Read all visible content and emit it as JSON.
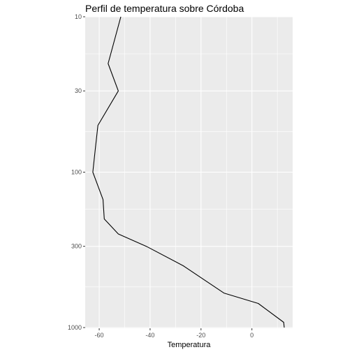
{
  "chart_data": {
    "type": "line",
    "title": "Perfil de temperatura sobre Córdoba",
    "xlabel": "Temperatura",
    "ylabel": "",
    "xlim": [
      -65.5,
      16
    ],
    "ylim": [
      10,
      1000
    ],
    "y_scale": "log",
    "y_reversed": true,
    "x_ticks": [
      -60,
      -40,
      -20,
      0
    ],
    "x_tick_labels": [
      "-60",
      "-40",
      "-20",
      "0"
    ],
    "y_ticks": [
      10,
      30,
      100,
      300,
      1000
    ],
    "y_tick_labels": [
      "10",
      "30",
      "100",
      "300",
      "1000"
    ],
    "grid": true,
    "legend": "none",
    "colors": {
      "panel": "#ebebeb",
      "grid": "#ffffff",
      "line": "#000000",
      "tick_text": "#4d4d4d"
    },
    "series": [
      {
        "x": [
          -51.5,
          -56.5,
          -52.5,
          -60.5,
          -61.5,
          -62.5,
          -58.5,
          -58.0,
          -52.5,
          -41.5,
          -27.0,
          -11.0,
          2.5,
          12.5,
          12.7
        ],
        "y": [
          10,
          20,
          30,
          50,
          70,
          100,
          150,
          200,
          250,
          300,
          400,
          600,
          700,
          925,
          1000
        ]
      }
    ]
  }
}
